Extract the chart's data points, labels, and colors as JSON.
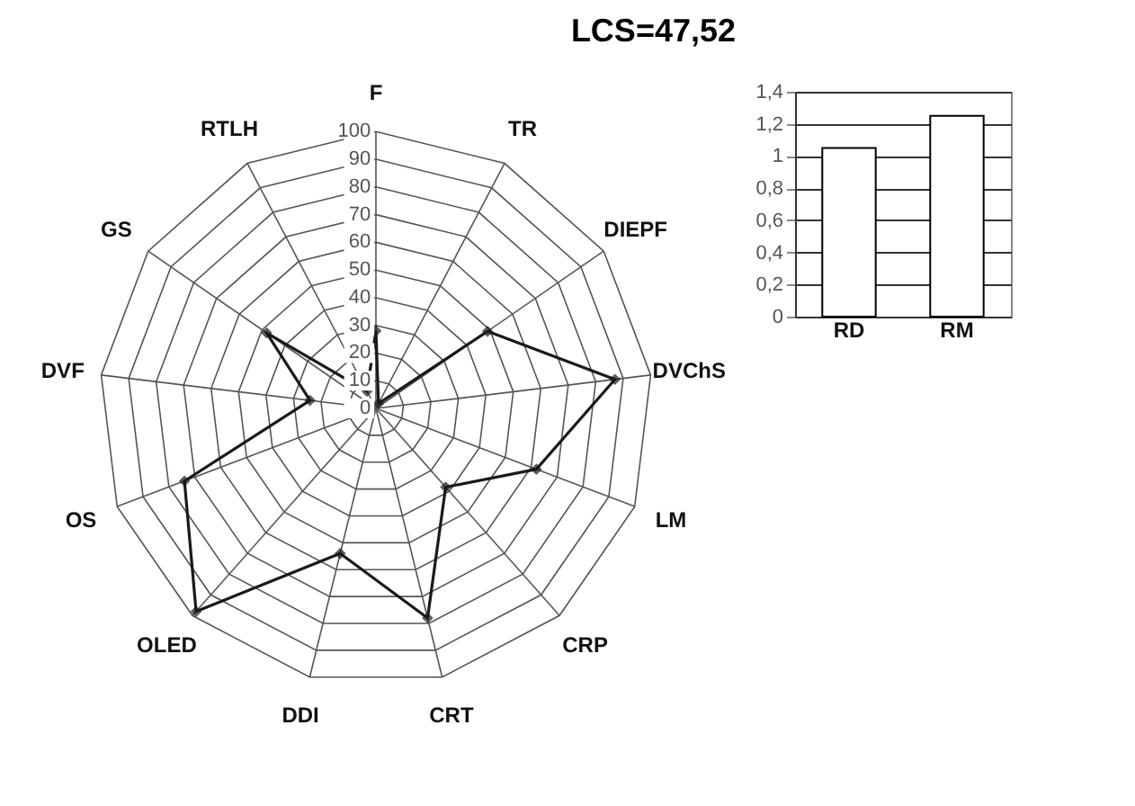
{
  "chart_data": [
    {
      "type": "radar",
      "title": "LCS=47,52",
      "categories": [
        "F",
        "TR",
        "DIEPF",
        "DVChS",
        "LM",
        "CRP",
        "CRT",
        "DDI",
        "OLED",
        "OS",
        "DVF",
        "GS",
        "RTLH"
      ],
      "series": [
        {
          "color": "#1a1a1a",
          "values": [
            28,
            2,
            49,
            87,
            62,
            38,
            78,
            54,
            98,
            74,
            24,
            48,
            7
          ]
        }
      ],
      "ylim": [
        0,
        100
      ],
      "yticks": [
        0,
        10,
        20,
        30,
        40,
        50,
        60,
        70,
        80,
        90,
        100
      ],
      "grid": true,
      "marker": "diamond"
    },
    {
      "type": "bar",
      "categories": [
        "RD",
        "RM"
      ],
      "values": [
        1.05,
        1.25
      ],
      "color": "#ffffff",
      "ylim": [
        0,
        1.4
      ],
      "yticks": [
        0,
        {
          "value": 0.2,
          "label": "0,2"
        },
        {
          "value": 0.4,
          "label": "0,4"
        },
        {
          "value": 0.6,
          "label": "0,6"
        },
        {
          "value": 0.8,
          "label": "0,8"
        },
        1,
        {
          "value": 1.2,
          "label": "1,2"
        },
        {
          "value": 1.4,
          "label": "1,4"
        }
      ],
      "grid": "y"
    }
  ]
}
